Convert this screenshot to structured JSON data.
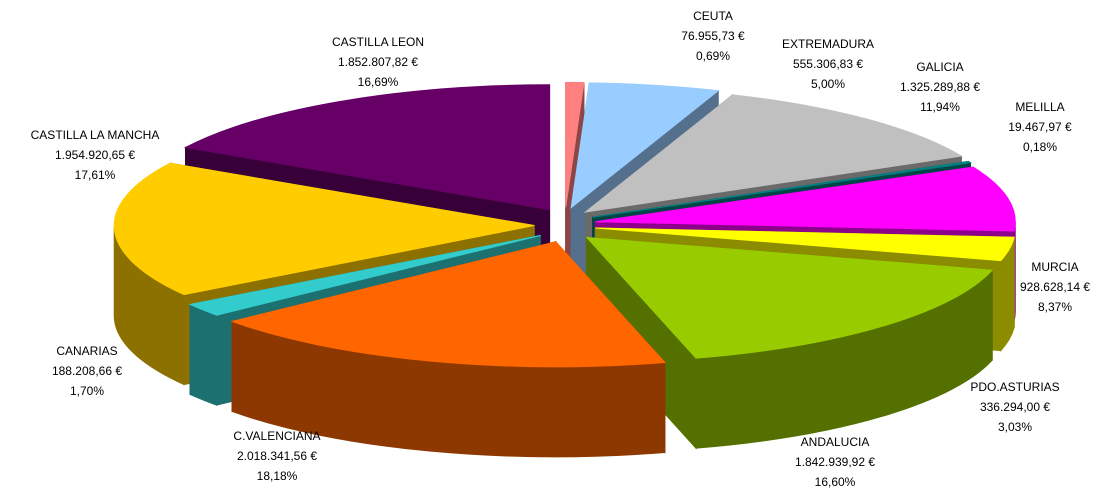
{
  "chart_data": {
    "type": "pie",
    "categories": [
      "CEUTA",
      "EXTREMADURA",
      "GALICIA",
      "MELILLA",
      "MURCIA",
      "PDO.ASTURIAS",
      "ANDALUCIA",
      "C.VALENCIANA",
      "CANARIAS",
      "CASTILLA LA MANCHA",
      "CASTILLA LEON"
    ],
    "values": [
      76955.73,
      555306.83,
      1325289.88,
      19467.97,
      928628.14,
      336294.0,
      1842939.92,
      2018341.56,
      188208.66,
      1954920.65,
      1852807.82
    ],
    "value_labels": [
      "76.955,73 €",
      "555.306,83 €",
      "1.325.289,88 €",
      "19.467,97 €",
      "928.628,14 €",
      "336.294,00 €",
      "1.842.939,92 €",
      "2.018.341,56 €",
      "188.208,66 €",
      "1.954.920,65 €",
      "1.852.807,82 €"
    ],
    "percent_labels": [
      "0,69%",
      "5,00%",
      "11,94%",
      "0,18%",
      "8,37%",
      "3,03%",
      "16,60%",
      "18,18%",
      "1,70%",
      "17,61%",
      "16,69%"
    ],
    "colors": [
      "#ff8080",
      "#99ccff",
      "#c0c0c0",
      "#008080",
      "#ff00ff",
      "#ffff00",
      "#99cc00",
      "#ff6600",
      "#33cccc",
      "#ffcc00",
      "#660066"
    ]
  }
}
